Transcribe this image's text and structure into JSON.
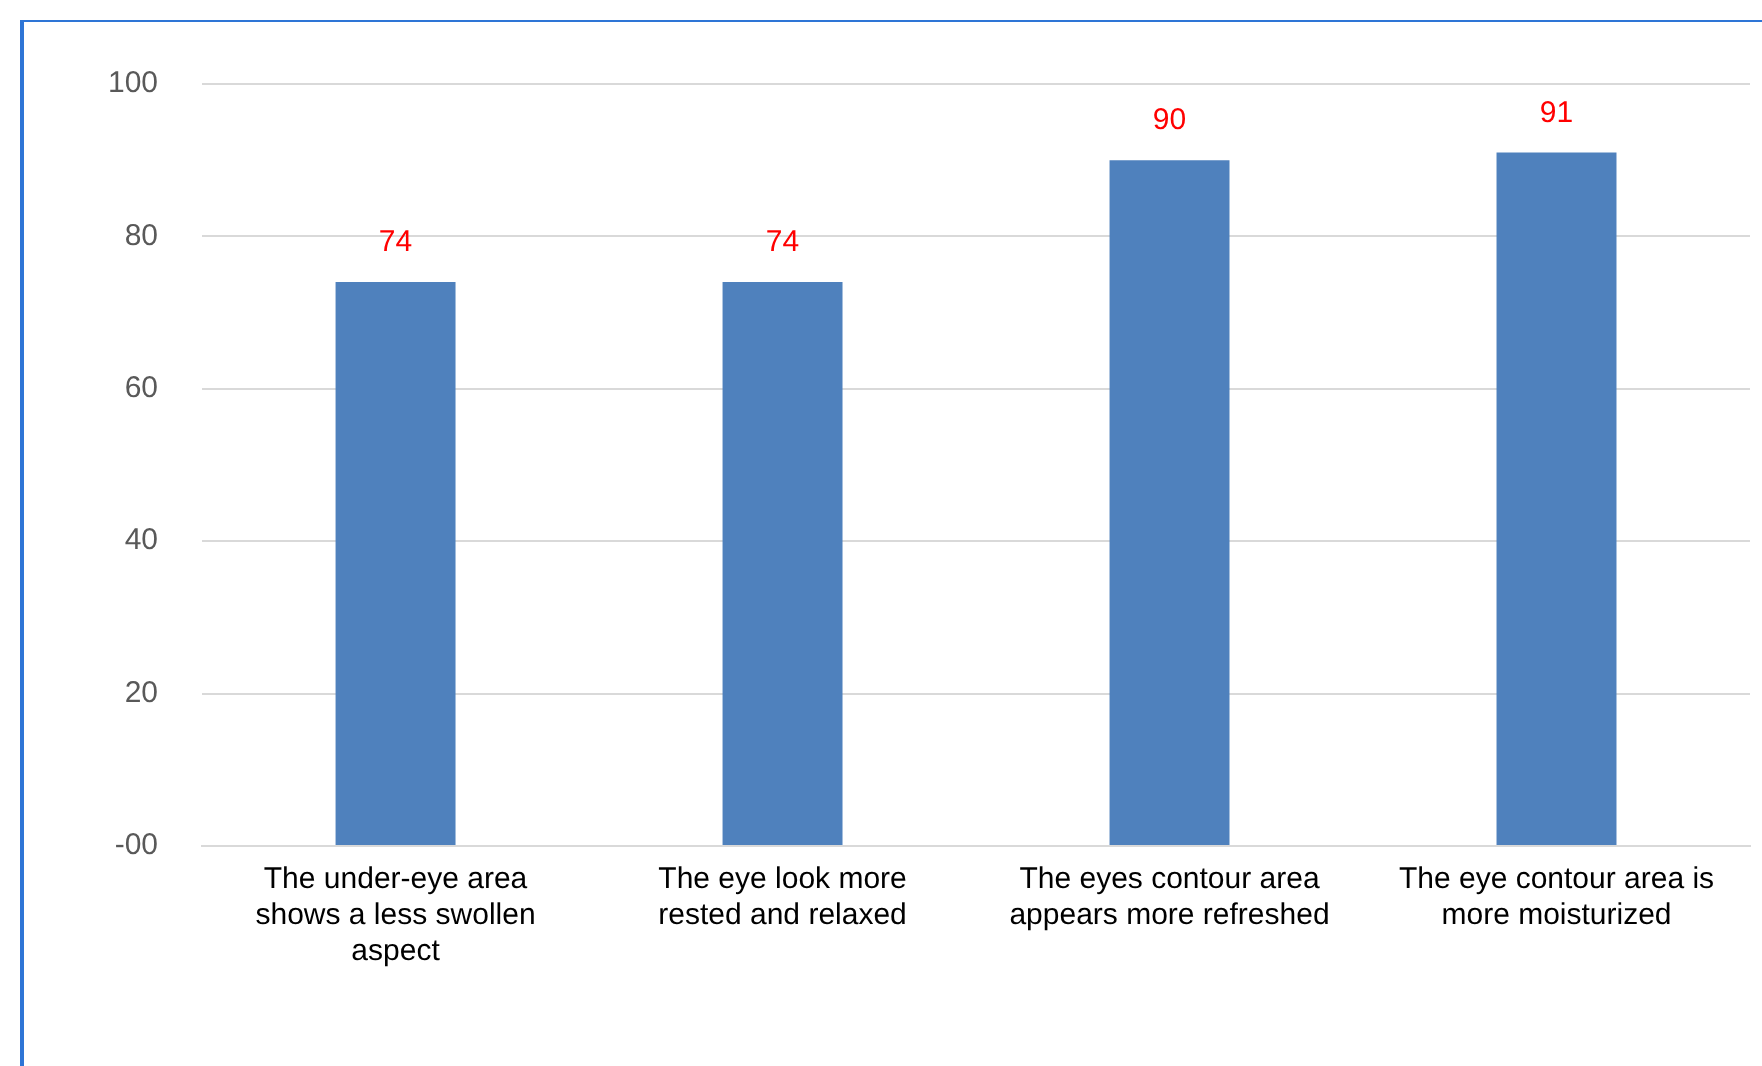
{
  "chart_data": {
    "type": "bar",
    "categories": [
      "The under-eye area shows a less swollen aspect",
      "The eye look more rested and relaxed",
      "The eyes contour area appears more refreshed",
      "The eye contour area is more moisturized"
    ],
    "values": [
      74,
      74,
      90,
      91
    ],
    "color": "#4f81bd",
    "ylim": [
      0,
      100
    ],
    "yticks": [
      {
        "value": 0,
        "label": "-00"
      },
      20,
      40,
      60,
      80,
      100
    ],
    "grid": "y",
    "data_labels": true
  }
}
